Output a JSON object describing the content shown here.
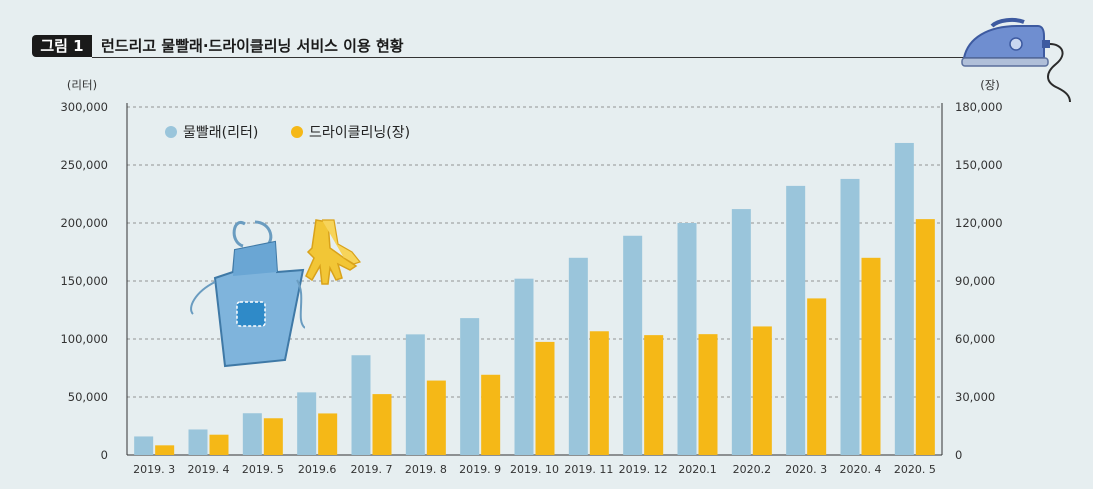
{
  "figure": {
    "label": "그림 1",
    "title": "런드리고 물빨래·드라이클리닝 서비스 이용 현황"
  },
  "colors": {
    "background": "#e6eef0",
    "laundry": "#9ac5db",
    "dryclean": "#f5b817",
    "gridline": "#777777",
    "axis": "#333333"
  },
  "icons": {
    "apron": "apron-icon",
    "gloves": "rubber-gloves-icon",
    "iron": "iron-icon"
  },
  "chart_data": {
    "type": "bar",
    "categories": [
      "2019. 3",
      "2019. 4",
      "2019. 5",
      "2019.6",
      "2019. 7",
      "2019. 8",
      "2019. 9",
      "2019. 10",
      "2019. 11",
      "2019. 12",
      "2020.1",
      "2020.2",
      "2020. 3",
      "2020. 4",
      "2020. 5"
    ],
    "series": [
      {
        "name": "물빨래(리터)",
        "axis": "left",
        "color": "#9ac5db",
        "values": [
          16000,
          22000,
          36000,
          54000,
          86000,
          104000,
          118000,
          152000,
          170000,
          189000,
          200000,
          212000,
          232000,
          238000,
          269000
        ]
      },
      {
        "name": "드라이클리닝(장)",
        "axis": "right",
        "color": "#f5b817",
        "values": [
          5000,
          10500,
          19000,
          21500,
          31500,
          38500,
          41500,
          58500,
          64000,
          62000,
          62500,
          66500,
          81000,
          102000,
          122000
        ]
      }
    ],
    "y_left": {
      "unit": "(리터)",
      "ylim": [
        0,
        300000
      ],
      "ticks": [
        0,
        50000,
        100000,
        150000,
        200000,
        250000,
        300000
      ],
      "tick_labels": [
        "0",
        "50,000",
        "100,000",
        "150,000",
        "200,000",
        "250,000",
        "300,000"
      ]
    },
    "y_right": {
      "unit": "(장)",
      "ylim": [
        0,
        180000
      ],
      "ticks": [
        0,
        30000,
        60000,
        90000,
        120000,
        150000,
        180000
      ],
      "tick_labels": [
        "0",
        "30,000",
        "60,000",
        "90,000",
        "120,000",
        "150,000",
        "180,000"
      ]
    },
    "grid": true,
    "legend_position": "top-left"
  }
}
